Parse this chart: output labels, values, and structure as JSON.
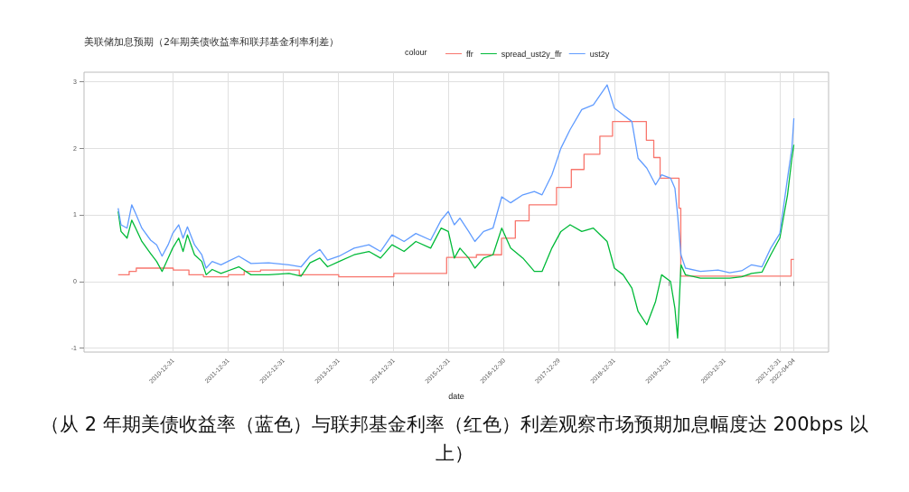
{
  "chart_data": {
    "type": "line",
    "title": "美联储加息预期（2年期美债收益率和联邦基金利率利差）",
    "xlabel": "date",
    "legend_title": "colour",
    "legend": "top",
    "grid": true,
    "line_style": "solid",
    "marker": "none",
    "xlim": [
      "2009-05-20",
      "2022-11-20"
    ],
    "xticks": [
      "2010-12-31",
      "2011-12-31",
      "2012-12-31",
      "2013-12-31",
      "2014-12-31",
      "2015-12-31",
      "2016-12-30",
      "2017-12-29",
      "2018-12-31",
      "2019-12-31",
      "2020-12-31",
      "2021-12-31",
      "2022-04-04"
    ],
    "ylim": [
      -1.06,
      3.14
    ],
    "yticks": [
      -1,
      0,
      1,
      2,
      3
    ],
    "x": [
      "2010-01-01",
      "2010-01-20",
      "2010-03-01",
      "2010-04-01",
      "2010-04-27",
      "2010-06-07",
      "2010-08-04",
      "2010-09-13",
      "2010-10-19",
      "2010-11-28",
      "2010-12-28",
      "2011-02-06",
      "2011-03-07",
      "2011-04-05",
      "2011-05-22",
      "2011-07-09",
      "2011-08-07",
      "2011-09-16",
      "2011-11-13",
      "2012-03-10",
      "2012-05-30",
      "2012-09-24",
      "2013-02-06",
      "2013-04-27",
      "2013-06-25",
      "2013-08-29",
      "2013-10-19",
      "2014-01-04",
      "2014-04-13",
      "2014-07-20",
      "2014-10-05",
      "2014-12-20",
      "2015-03-10",
      "2015-05-27",
      "2015-09-02",
      "2015-11-10",
      "2015-12-28",
      "2016-02-06",
      "2016-03-14",
      "2016-05-11",
      "2016-06-21",
      "2016-08-18",
      "2016-10-19",
      "2016-12-16",
      "2017-02-13",
      "2017-05-05",
      "2017-07-20",
      "2017-09-09",
      "2017-11-13",
      "2018-01-12",
      "2018-03-14",
      "2018-05-30",
      "2018-08-15",
      "2018-11-14",
      "2019-01-01",
      "2019-02-28",
      "2019-04-27",
      "2019-06-07",
      "2019-08-04",
      "2019-10-01",
      "2019-11-10",
      "2020-01-08",
      "2020-02-06",
      "2020-02-24",
      "2020-03-17",
      "2020-04-16",
      "2020-07-24",
      "2020-11-18",
      "2021-02-03",
      "2021-04-23",
      "2021-06-28",
      "2021-09-05",
      "2021-11-02",
      "2022-01-01",
      "2022-02-21",
      "2022-03-22",
      "2022-04-04"
    ],
    "series": [
      {
        "name": "ffr",
        "type": "step",
        "color": "#f8766d",
        "x": [
          "2010-01-01",
          "2010-03-15",
          "2010-05-01",
          "2011-01-01",
          "2011-04-15",
          "2011-07-20",
          "2012-01-01",
          "2012-04-15",
          "2012-08-01",
          "2013-04-15",
          "2014-01-01",
          "2015-01-01",
          "2015-12-17",
          "2016-07-01",
          "2016-12-15",
          "2017-03-16",
          "2017-06-15",
          "2017-12-14",
          "2018-03-22",
          "2018-06-14",
          "2018-09-27",
          "2018-12-20",
          "2019-07-01",
          "2019-08-01",
          "2019-09-19",
          "2019-10-31",
          "2020-03-04",
          "2020-03-16",
          "2022-03-17",
          "2022-04-04"
        ],
        "values": [
          0.1,
          0.15,
          0.2,
          0.17,
          0.1,
          0.07,
          0.1,
          0.15,
          0.17,
          0.1,
          0.07,
          0.12,
          0.36,
          0.4,
          0.65,
          0.91,
          1.15,
          1.41,
          1.68,
          1.91,
          2.18,
          2.4,
          2.4,
          2.12,
          1.86,
          1.55,
          1.1,
          0.08,
          0.33,
          0.33
        ]
      },
      {
        "name": "spread_ust2y_ffr",
        "color": "#00ba38",
        "values": [
          1.05,
          0.75,
          0.65,
          0.92,
          0.8,
          0.6,
          0.42,
          0.3,
          0.15,
          0.35,
          0.5,
          0.65,
          0.45,
          0.7,
          0.4,
          0.3,
          0.1,
          0.18,
          0.12,
          0.22,
          0.1,
          0.1,
          0.12,
          0.08,
          0.28,
          0.35,
          0.22,
          0.3,
          0.4,
          0.45,
          0.35,
          0.55,
          0.45,
          0.6,
          0.5,
          0.8,
          0.75,
          0.35,
          0.5,
          0.35,
          0.2,
          0.35,
          0.4,
          0.8,
          0.5,
          0.35,
          0.15,
          0.15,
          0.5,
          0.75,
          0.85,
          0.75,
          0.8,
          0.6,
          0.2,
          0.1,
          -0.1,
          -0.45,
          -0.65,
          -0.3,
          0.1,
          0.0,
          -0.4,
          -0.85,
          0.25,
          0.1,
          0.05,
          0.05,
          0.05,
          0.07,
          0.12,
          0.14,
          0.4,
          0.65,
          1.3,
          1.85,
          2.05
        ]
      },
      {
        "name": "ust2y",
        "color": "#619cff",
        "values": [
          1.1,
          0.85,
          0.8,
          1.15,
          1.02,
          0.8,
          0.62,
          0.55,
          0.38,
          0.55,
          0.72,
          0.85,
          0.65,
          0.82,
          0.55,
          0.4,
          0.2,
          0.3,
          0.25,
          0.38,
          0.27,
          0.28,
          0.25,
          0.22,
          0.38,
          0.48,
          0.32,
          0.38,
          0.5,
          0.55,
          0.45,
          0.7,
          0.6,
          0.72,
          0.62,
          0.92,
          1.05,
          0.85,
          0.95,
          0.75,
          0.6,
          0.75,
          0.8,
          1.27,
          1.18,
          1.3,
          1.35,
          1.3,
          1.6,
          2.0,
          2.28,
          2.58,
          2.65,
          2.95,
          2.6,
          2.5,
          2.4,
          1.85,
          1.7,
          1.45,
          1.6,
          1.55,
          1.4,
          1.0,
          0.4,
          0.2,
          0.15,
          0.17,
          0.13,
          0.16,
          0.25,
          0.22,
          0.5,
          0.72,
          1.55,
          2.0,
          2.45
        ]
      }
    ],
    "annotations": [
      "（从 2 年期美债收益率（蓝色）与联邦基金利率（红色）利差观察市场预期加息幅度达 200bps 以上）"
    ]
  }
}
